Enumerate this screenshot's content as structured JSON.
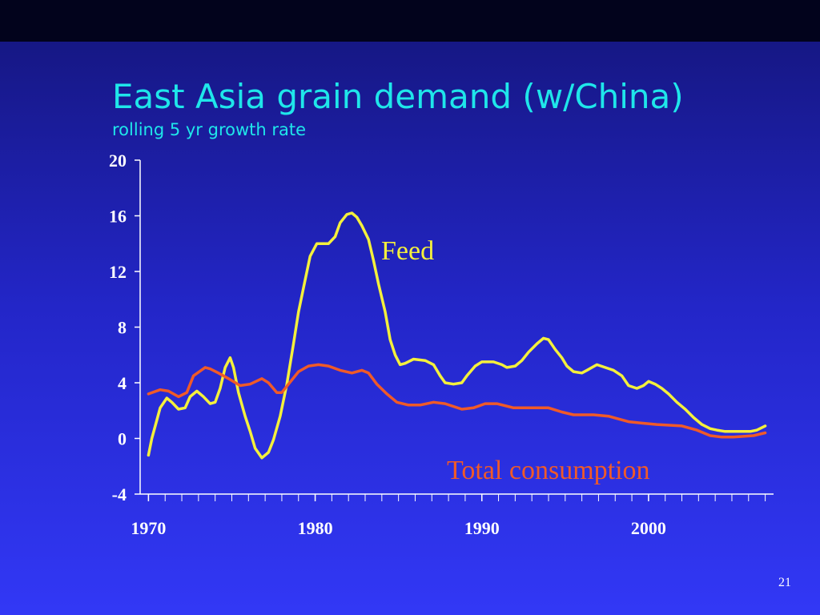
{
  "chart_data": {
    "type": "line",
    "title": "East Asia grain demand (w/China)",
    "subtitle": "rolling 5 yr growth rate",
    "page_number": "21",
    "xlim": [
      1969.5,
      2007.5
    ],
    "xticks": [
      1970,
      1980,
      1990,
      2000
    ],
    "xminor_step": 1,
    "ylim": [
      -4,
      20
    ],
    "yticks": [
      -4,
      0,
      4,
      8,
      12,
      16,
      20
    ],
    "grid": false,
    "legend": "inline",
    "series": [
      {
        "name": "Feed",
        "color": "#f4f03c",
        "x": [
          1970.0,
          1970.2,
          1970.5,
          1970.7,
          1971.1,
          1971.4,
          1971.8,
          1972.2,
          1972.5,
          1972.9,
          1973.3,
          1973.7,
          1974.0,
          1974.3,
          1974.6,
          1974.9,
          1975.1,
          1975.4,
          1975.8,
          1976.1,
          1976.4,
          1976.8,
          1977.2,
          1977.5,
          1977.9,
          1978.3,
          1978.7,
          1979.0,
          1979.4,
          1979.7,
          1980.1,
          1980.8,
          1981.2,
          1981.5,
          1981.9,
          1982.2,
          1982.5,
          1982.8,
          1983.2,
          1983.5,
          1983.8,
          1984.2,
          1984.5,
          1984.8,
          1985.1,
          1985.4,
          1985.9,
          1986.6,
          1987.1,
          1987.5,
          1987.8,
          1988.3,
          1988.8,
          1989.1,
          1989.6,
          1990.0,
          1990.7,
          1991.2,
          1991.5,
          1992.0,
          1992.4,
          1992.8,
          1993.3,
          1993.7,
          1994.0,
          1994.4,
          1994.8,
          1995.1,
          1995.5,
          1996.0,
          1996.3,
          1996.9,
          1997.4,
          1997.9,
          1998.4,
          1998.8,
          1999.3,
          1999.7,
          2000.0,
          2000.4,
          2000.8,
          2001.2,
          2001.7,
          2002.2,
          2002.7,
          2003.2,
          2003.7,
          2004.1,
          2004.6,
          2005.3,
          2006.1,
          2006.5,
          2007.0
        ],
        "values": [
          -1.2,
          0.0,
          1.3,
          2.2,
          2.9,
          2.6,
          2.1,
          2.2,
          3.0,
          3.4,
          3.0,
          2.5,
          2.6,
          3.6,
          5.1,
          5.8,
          5.1,
          3.3,
          1.6,
          0.5,
          -0.7,
          -1.4,
          -1.0,
          -0.1,
          1.6,
          3.9,
          6.8,
          9.1,
          11.4,
          13.1,
          14.0,
          14.0,
          14.5,
          15.5,
          16.1,
          16.2,
          15.9,
          15.3,
          14.3,
          12.8,
          11.1,
          9.1,
          7.1,
          6.0,
          5.3,
          5.4,
          5.7,
          5.6,
          5.3,
          4.5,
          4.0,
          3.9,
          4.0,
          4.5,
          5.2,
          5.5,
          5.5,
          5.3,
          5.1,
          5.2,
          5.6,
          6.2,
          6.8,
          7.2,
          7.1,
          6.4,
          5.8,
          5.2,
          4.8,
          4.7,
          4.9,
          5.3,
          5.1,
          4.9,
          4.5,
          3.8,
          3.6,
          3.8,
          4.1,
          3.9,
          3.6,
          3.2,
          2.6,
          2.1,
          1.5,
          1.0,
          0.7,
          0.6,
          0.5,
          0.5,
          0.5,
          0.6,
          0.9
        ]
      },
      {
        "name": "Total consumption",
        "color": "#f05a28",
        "x": [
          1970.0,
          1970.7,
          1971.2,
          1971.8,
          1972.3,
          1972.7,
          1973.4,
          1973.7,
          1974.2,
          1974.8,
          1975.5,
          1976.1,
          1976.8,
          1977.2,
          1977.7,
          1978.0,
          1978.4,
          1979.0,
          1979.6,
          1980.2,
          1980.8,
          1981.5,
          1982.2,
          1982.8,
          1983.2,
          1983.7,
          1984.3,
          1984.9,
          1985.6,
          1986.3,
          1987.1,
          1987.8,
          1988.8,
          1989.5,
          1990.2,
          1990.9,
          1991.9,
          1992.8,
          1994.0,
          1994.8,
          1995.5,
          1996.7,
          1997.6,
          1998.8,
          1999.6,
          2000.5,
          2002.0,
          2002.9,
          2003.7,
          2004.4,
          2005.1,
          2006.3,
          2007.0
        ],
        "values": [
          3.2,
          3.5,
          3.4,
          3.0,
          3.3,
          4.5,
          5.1,
          5.0,
          4.7,
          4.3,
          3.8,
          3.9,
          4.3,
          4.0,
          3.3,
          3.3,
          3.9,
          4.8,
          5.2,
          5.3,
          5.2,
          4.9,
          4.7,
          4.9,
          4.7,
          3.9,
          3.2,
          2.6,
          2.4,
          2.4,
          2.6,
          2.5,
          2.1,
          2.2,
          2.5,
          2.5,
          2.2,
          2.2,
          2.2,
          1.9,
          1.7,
          1.7,
          1.6,
          1.2,
          1.1,
          1.0,
          0.9,
          0.6,
          0.2,
          0.1,
          0.1,
          0.2,
          0.4
        ]
      }
    ]
  }
}
